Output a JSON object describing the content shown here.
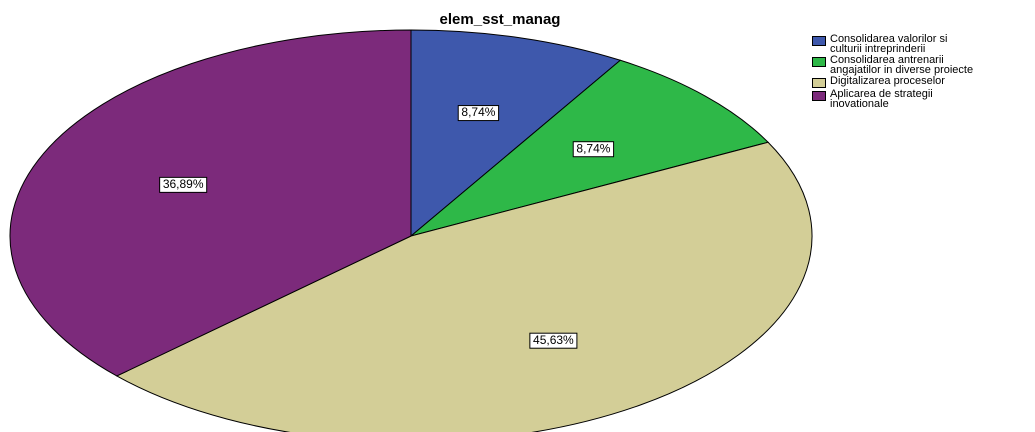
{
  "chart_data": {
    "type": "pie",
    "title": "elem_sst_manag",
    "categories": [
      "Consolidarea valorilor si culturii intreprinderii",
      "Consolidarea antrenarii angajatilor in diverse proiecte",
      "Digitalizarea proceselor",
      "Aplicarea de strategii inovationale"
    ],
    "values": [
      8.74,
      8.74,
      45.63,
      36.89
    ],
    "value_labels": [
      "8,74%",
      "8,74%",
      "45,63%",
      "36,89%"
    ],
    "colors": [
      "#3e58ac",
      "#2eb848",
      "#d3ce97",
      "#7c2a7b"
    ],
    "legend": "right"
  }
}
